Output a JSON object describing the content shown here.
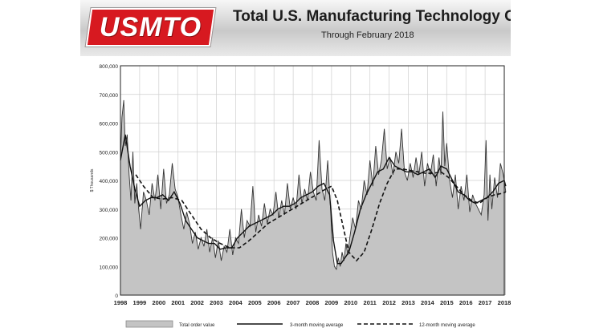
{
  "logo_text": "USMTO",
  "header": {
    "title": "Total U.S. Manufacturing Technology Orders",
    "subtitle": "Through February  2018"
  },
  "chart_data": {
    "type": "area",
    "title": "Total U.S. Manufacturing Technology Orders",
    "subtitle": "Through February  2018",
    "ylabel": "$ Thousands",
    "xlabel": "",
    "xlim": [
      1998,
      2018
    ],
    "ylim": [
      0,
      800000
    ],
    "grid": true,
    "legend_position": "bottom",
    "x_ticks": [
      "1998",
      "1999",
      "2000",
      "2001",
      "2002",
      "2003",
      "2004",
      "2005",
      "2006",
      "2007",
      "2008",
      "2009",
      "2010",
      "2011",
      "2012",
      "2013",
      "2014",
      "2015",
      "2016",
      "2017",
      "2018"
    ],
    "y_ticks": [
      "0",
      "100,000",
      "200,000",
      "300,000",
      "400,000",
      "500,000",
      "600,000",
      "700,000",
      "800,000"
    ],
    "legend": [
      "Total order value",
      "3-month moving average",
      "12-month moving average"
    ],
    "colors": {
      "area": "#c4c4c4",
      "area_edge": "#8a8a8a",
      "line": "#111111",
      "grid": "#cfcfcf"
    },
    "series": [
      {
        "name": "Total order value",
        "x": [
          1998.0,
          1998.08,
          1998.17,
          1998.25,
          1998.35,
          1998.45,
          1998.55,
          1998.65,
          1998.75,
          1998.85,
          1998.95,
          1999.05,
          1999.2,
          1999.35,
          1999.5,
          1999.65,
          1999.8,
          1999.95,
          2000.1,
          2000.25,
          2000.4,
          2000.55,
          2000.7,
          2000.85,
          2001.0,
          2001.15,
          2001.3,
          2001.45,
          2001.6,
          2001.75,
          2001.9,
          2002.05,
          2002.2,
          2002.35,
          2002.5,
          2002.65,
          2002.8,
          2002.95,
          2003.1,
          2003.25,
          2003.4,
          2003.55,
          2003.7,
          2003.85,
          2004.0,
          2004.15,
          2004.3,
          2004.45,
          2004.6,
          2004.75,
          2004.9,
          2005.05,
          2005.2,
          2005.35,
          2005.5,
          2005.65,
          2005.8,
          2005.95,
          2006.1,
          2006.25,
          2006.4,
          2006.55,
          2006.7,
          2006.85,
          2007.0,
          2007.15,
          2007.3,
          2007.45,
          2007.6,
          2007.75,
          2007.9,
          2008.05,
          2008.2,
          2008.35,
          2008.5,
          2008.65,
          2008.8,
          2008.95,
          2009.05,
          2009.15,
          2009.25,
          2009.35,
          2009.45,
          2009.55,
          2009.65,
          2009.75,
          2009.85,
          2009.95,
          2010.1,
          2010.25,
          2010.4,
          2010.55,
          2010.7,
          2010.85,
          2011.0,
          2011.15,
          2011.3,
          2011.45,
          2011.6,
          2011.75,
          2011.9,
          2012.05,
          2012.2,
          2012.35,
          2012.5,
          2012.65,
          2012.8,
          2012.95,
          2013.1,
          2013.25,
          2013.4,
          2013.55,
          2013.7,
          2013.85,
          2014.0,
          2014.15,
          2014.3,
          2014.45,
          2014.6,
          2014.7,
          2014.8,
          2014.9,
          2015.0,
          2015.15,
          2015.3,
          2015.45,
          2015.6,
          2015.75,
          2015.9,
          2016.05,
          2016.2,
          2016.35,
          2016.5,
          2016.65,
          2016.8,
          2016.95,
          2017.05,
          2017.15,
          2017.25,
          2017.35,
          2017.5,
          2017.65,
          2017.8,
          2017.95,
          2018.08
        ],
        "values": [
          470000,
          620000,
          680000,
          520000,
          560000,
          420000,
          330000,
          500000,
          320000,
          390000,
          300000,
          230000,
          360000,
          330000,
          280000,
          390000,
          330000,
          420000,
          300000,
          440000,
          320000,
          350000,
          460000,
          370000,
          340000,
          280000,
          230000,
          290000,
          250000,
          180000,
          220000,
          160000,
          200000,
          170000,
          230000,
          150000,
          200000,
          130000,
          190000,
          120000,
          170000,
          150000,
          230000,
          140000,
          200000,
          180000,
          300000,
          200000,
          260000,
          240000,
          380000,
          220000,
          280000,
          240000,
          320000,
          250000,
          300000,
          280000,
          360000,
          270000,
          330000,
          280000,
          390000,
          300000,
          340000,
          300000,
          420000,
          320000,
          370000,
          330000,
          430000,
          360000,
          330000,
          540000,
          370000,
          330000,
          470000,
          300000,
          150000,
          100000,
          90000,
          130000,
          100000,
          150000,
          120000,
          180000,
          140000,
          200000,
          270000,
          230000,
          330000,
          300000,
          400000,
          350000,
          470000,
          380000,
          520000,
          420000,
          470000,
          580000,
          440000,
          480000,
          420000,
          500000,
          460000,
          580000,
          430000,
          400000,
          460000,
          410000,
          480000,
          420000,
          500000,
          380000,
          460000,
          420000,
          490000,
          380000,
          480000,
          420000,
          640000,
          450000,
          530000,
          400000,
          340000,
          420000,
          300000,
          380000,
          330000,
          420000,
          290000,
          350000,
          320000,
          300000,
          280000,
          350000,
          540000,
          260000,
          420000,
          300000,
          410000,
          340000,
          460000,
          420000,
          360000
        ]
      },
      {
        "name": "3-month moving average",
        "x": [
          1998.0,
          1998.25,
          1998.5,
          1998.75,
          1999.0,
          1999.3,
          1999.6,
          1999.9,
          2000.2,
          2000.5,
          2000.8,
          2001.1,
          2001.4,
          2001.7,
          2002.0,
          2002.3,
          2002.6,
          2002.9,
          2003.2,
          2003.5,
          2003.8,
          2004.1,
          2004.4,
          2004.7,
          2005.0,
          2005.3,
          2005.6,
          2005.9,
          2006.2,
          2006.5,
          2006.8,
          2007.1,
          2007.4,
          2007.7,
          2008.0,
          2008.3,
          2008.6,
          2008.9,
          2009.1,
          2009.3,
          2009.5,
          2009.7,
          2009.9,
          2010.2,
          2010.5,
          2010.8,
          2011.1,
          2011.4,
          2011.7,
          2012.0,
          2012.3,
          2012.6,
          2012.9,
          2013.2,
          2013.5,
          2013.8,
          2014.1,
          2014.4,
          2014.7,
          2015.0,
          2015.3,
          2015.6,
          2015.9,
          2016.2,
          2016.5,
          2016.8,
          2017.1,
          2017.4,
          2017.7,
          2018.0,
          2018.08
        ],
        "values": [
          470000,
          560000,
          450000,
          370000,
          310000,
          330000,
          340000,
          340000,
          350000,
          330000,
          360000,
          320000,
          260000,
          230000,
          200000,
          190000,
          180000,
          180000,
          160000,
          165000,
          165000,
          200000,
          220000,
          240000,
          250000,
          260000,
          270000,
          280000,
          300000,
          310000,
          310000,
          320000,
          340000,
          350000,
          360000,
          380000,
          390000,
          350000,
          190000,
          110000,
          110000,
          130000,
          150000,
          220000,
          300000,
          350000,
          390000,
          430000,
          440000,
          480000,
          450000,
          440000,
          430000,
          430000,
          420000,
          430000,
          440000,
          410000,
          450000,
          440000,
          400000,
          360000,
          350000,
          330000,
          320000,
          330000,
          340000,
          360000,
          390000,
          400000,
          380000
        ]
      },
      {
        "name": "12-month moving average",
        "x": [
          1998.8,
          1999.2,
          1999.7,
          2000.2,
          2000.7,
          2001.2,
          2001.7,
          2002.2,
          2002.7,
          2003.2,
          2003.7,
          2004.2,
          2004.7,
          2005.2,
          2005.7,
          2006.2,
          2006.7,
          2007.2,
          2007.7,
          2008.2,
          2008.7,
          2009.0,
          2009.3,
          2009.6,
          2009.9,
          2010.3,
          2010.7,
          2011.1,
          2011.5,
          2011.9,
          2012.3,
          2012.7,
          2013.1,
          2013.5,
          2013.9,
          2014.3,
          2014.7,
          2015.1,
          2015.5,
          2015.9,
          2016.3,
          2016.7,
          2017.1,
          2017.5,
          2017.9,
          2018.08
        ],
        "values": [
          420000,
          380000,
          340000,
          335000,
          340000,
          330000,
          280000,
          230000,
          200000,
          180000,
          165000,
          165000,
          190000,
          220000,
          250000,
          270000,
          290000,
          310000,
          330000,
          350000,
          370000,
          380000,
          330000,
          240000,
          150000,
          120000,
          150000,
          230000,
          320000,
          390000,
          440000,
          440000,
          435000,
          430000,
          425000,
          425000,
          430000,
          410000,
          380000,
          350000,
          330000,
          320000,
          340000,
          350000,
          355000,
          360000
        ]
      }
    ]
  }
}
